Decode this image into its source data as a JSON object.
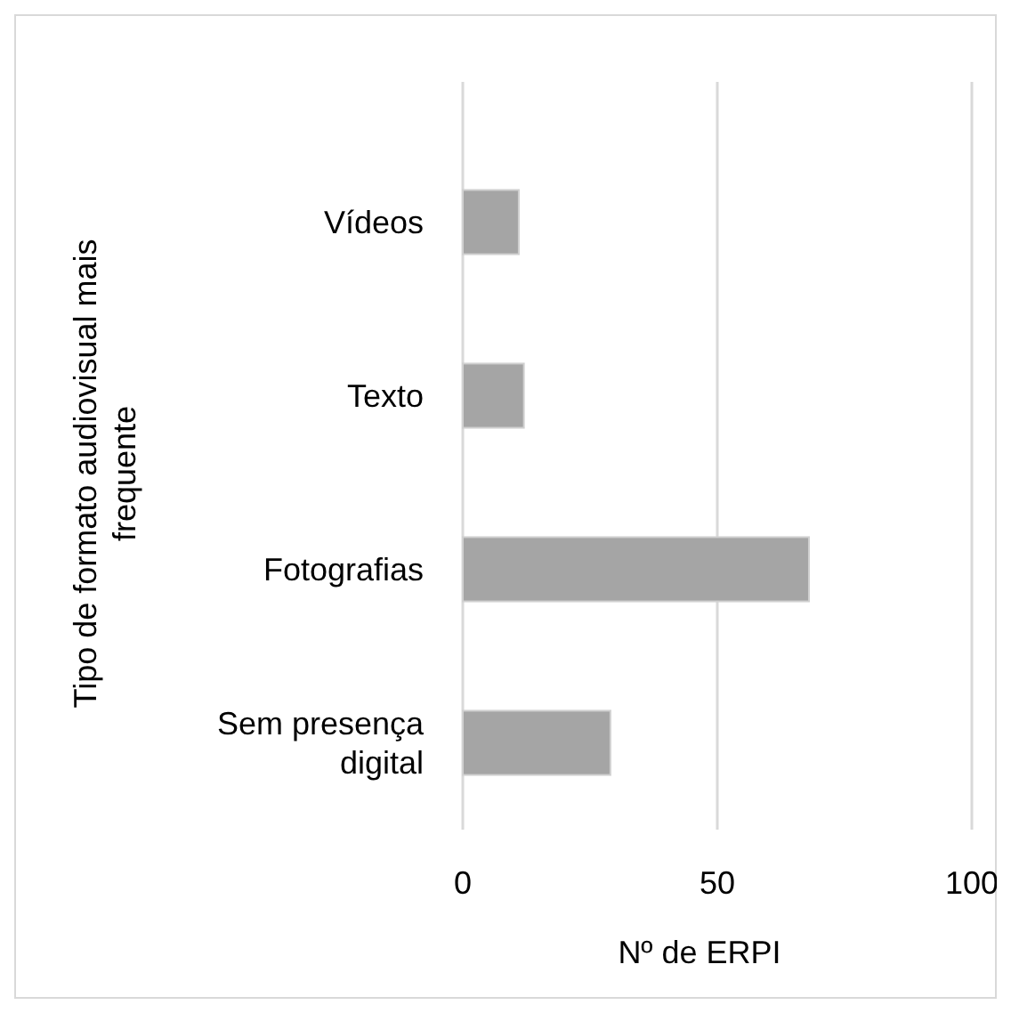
{
  "chart_data": {
    "type": "bar",
    "orientation": "horizontal",
    "categories": [
      "Vídeos",
      "Texto",
      "Fotografias",
      "Sem presença digital"
    ],
    "values": [
      11,
      12,
      68,
      29
    ],
    "color": "#a5a5a5",
    "xlim": [
      0,
      100
    ],
    "xticks": [
      0,
      50,
      100
    ],
    "grid": "x",
    "xlabel": "Nº de ERPI",
    "ylabel": "Tipo de formato audiovisual mais frequente"
  }
}
